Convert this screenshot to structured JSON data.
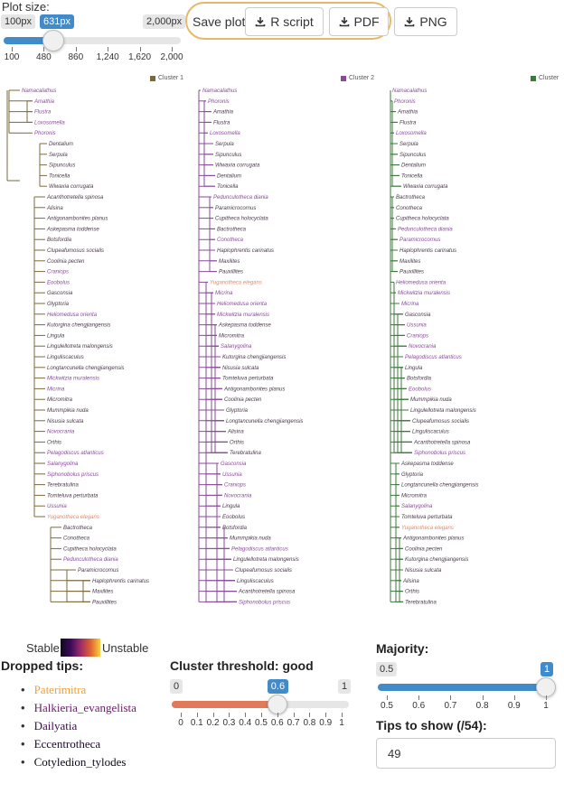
{
  "plot_size": {
    "label": "Plot size:",
    "min": "100px",
    "max": "2,000px",
    "value": "631px",
    "value_fraction": 0.2795,
    "ticks": [
      "100",
      "480",
      "860",
      "1,240",
      "1,620",
      "2,000"
    ]
  },
  "save": {
    "label": "Save plot:",
    "buttons": [
      "R script",
      "PDF",
      "PNG"
    ]
  },
  "clusters": {
    "labels": [
      "Cluster 1",
      "Cluster 2",
      "Cluster"
    ],
    "colors": [
      "#7a6a3a",
      "#8a4a9a",
      "#3a7a3a"
    ]
  },
  "trees": [
    {
      "tips": [
        {
          "t": "Namacalathus",
          "c": "#8a4a9a"
        },
        {
          "t": "Amathia",
          "c": "#8a4a9a"
        },
        {
          "t": "Flustra",
          "c": "#8a4a9a"
        },
        {
          "t": "Loxosomella",
          "c": "#8a4a9a"
        },
        {
          "t": "Phoronis",
          "c": "#8a4a9a"
        },
        {
          "t": "Dentalium",
          "c": "#4a3a4a"
        },
        {
          "t": "Serpula",
          "c": "#4a3a4a"
        },
        {
          "t": "Sipunculus",
          "c": "#4a3a4a"
        },
        {
          "t": "Tonicella",
          "c": "#4a3a4a"
        },
        {
          "t": "Wiwaxia corrugata",
          "c": "#4a3a4a"
        },
        {
          "t": "Acanthotretella spinosa",
          "c": "#4a3a4a"
        },
        {
          "t": "Alisina",
          "c": "#4a3a4a"
        },
        {
          "t": "Antigonambonites planus",
          "c": "#4a3a4a"
        },
        {
          "t": "Askepasma toddense",
          "c": "#4a3a4a"
        },
        {
          "t": "Botsfordia",
          "c": "#4a3a4a"
        },
        {
          "t": "Clupeafumosus socialis",
          "c": "#4a3a4a"
        },
        {
          "t": "Coolinia pecten",
          "c": "#4a3a4a"
        },
        {
          "t": "Craniops",
          "c": "#8a4a9a"
        },
        {
          "t": "Eoobolus",
          "c": "#8a4a9a"
        },
        {
          "t": "Gasconsia",
          "c": "#4a3a4a"
        },
        {
          "t": "Glyptoria",
          "c": "#4a3a4a"
        },
        {
          "t": "Heliomedusa orienta",
          "c": "#8a4a9a"
        },
        {
          "t": "Kutorgina chengjiangensis",
          "c": "#4a3a4a"
        },
        {
          "t": "Lingula",
          "c": "#4a3a4a"
        },
        {
          "t": "Lingulellotreta malongensis",
          "c": "#4a3a4a"
        },
        {
          "t": "Linguliscaculus",
          "c": "#4a3a4a"
        },
        {
          "t": "Longtancunella chengjiangensis",
          "c": "#4a3a4a"
        },
        {
          "t": "Mickwitzia muralensis",
          "c": "#8a4a9a"
        },
        {
          "t": "Micrina",
          "c": "#8a4a9a"
        },
        {
          "t": "Micromitra",
          "c": "#4a3a4a"
        },
        {
          "t": "Mummpikia nuda",
          "c": "#4a3a4a"
        },
        {
          "t": "Nisusia sulcata",
          "c": "#4a3a4a"
        },
        {
          "t": "Novocrania",
          "c": "#8a4a9a"
        },
        {
          "t": "Orthis",
          "c": "#4a3a4a"
        },
        {
          "t": "Pelagodiscus atlanticus",
          "c": "#8a4a9a"
        },
        {
          "t": "Salanygolina",
          "c": "#8a4a9a"
        },
        {
          "t": "Siphonobolus priscus",
          "c": "#8a4a9a"
        },
        {
          "t": "Terebratulina",
          "c": "#4a3a4a"
        },
        {
          "t": "Tomteluva perturbata",
          "c": "#4a3a4a"
        },
        {
          "t": "Ussunia",
          "c": "#8a4a9a"
        },
        {
          "t": "Yuganotheca elegans",
          "c": "#e38a6a"
        },
        {
          "t": "Bactrotheca",
          "c": "#4a3a4a"
        },
        {
          "t": "Conotheca",
          "c": "#4a3a4a"
        },
        {
          "t": "Cupitheca holocyclata",
          "c": "#4a3a4a"
        },
        {
          "t": "Pedunculotheca diania",
          "c": "#8a4a9a"
        },
        {
          "t": "Paramicrocornus",
          "c": "#4a3a4a"
        },
        {
          "t": "Haplophrentis carinatus",
          "c": "#4a3a4a"
        },
        {
          "t": "Maxilites",
          "c": "#4a3a4a"
        },
        {
          "t": "Pauxillites",
          "c": "#4a3a4a"
        }
      ]
    },
    {
      "tips": [
        {
          "t": "Namacalathus",
          "c": "#8a4a9a"
        },
        {
          "t": "Phoronis",
          "c": "#8a4a9a"
        },
        {
          "t": "Amathia",
          "c": "#4a3a4a"
        },
        {
          "t": "Flustra",
          "c": "#4a3a4a"
        },
        {
          "t": "Loxosomella",
          "c": "#8a4a9a"
        },
        {
          "t": "Serpula",
          "c": "#4a3a4a"
        },
        {
          "t": "Sipunculus",
          "c": "#4a3a4a"
        },
        {
          "t": "Wiwaxia corrugata",
          "c": "#4a3a4a"
        },
        {
          "t": "Dentalium",
          "c": "#4a3a4a"
        },
        {
          "t": "Tonicella",
          "c": "#4a3a4a"
        },
        {
          "t": "Pedunculotheca diania",
          "c": "#8a4a9a"
        },
        {
          "t": "Paramicrocornus",
          "c": "#4a3a4a"
        },
        {
          "t": "Cupitheca holocyclata",
          "c": "#4a3a4a"
        },
        {
          "t": "Bactrotheca",
          "c": "#4a3a4a"
        },
        {
          "t": "Conotheca",
          "c": "#8a4a9a"
        },
        {
          "t": "Haplophrentis carinatus",
          "c": "#4a3a4a"
        },
        {
          "t": "Maxilites",
          "c": "#4a3a4a"
        },
        {
          "t": "Pauxillites",
          "c": "#4a3a4a"
        },
        {
          "t": "Yuganotheca elegans",
          "c": "#e38a6a"
        },
        {
          "t": "Micrina",
          "c": "#8a4a9a"
        },
        {
          "t": "Heliomedusa orienta",
          "c": "#8a4a9a"
        },
        {
          "t": "Mickwitzia muralensis",
          "c": "#8a4a9a"
        },
        {
          "t": "Askepasma toddense",
          "c": "#4a3a4a"
        },
        {
          "t": "Micromitra",
          "c": "#4a3a4a"
        },
        {
          "t": "Salanygolina",
          "c": "#8a4a9a"
        },
        {
          "t": "Kutorgina chengjiangensis",
          "c": "#4a3a4a"
        },
        {
          "t": "Nisusia sulcata",
          "c": "#4a3a4a"
        },
        {
          "t": "Tomteluva perturbata",
          "c": "#4a3a4a"
        },
        {
          "t": "Antigonambonites planus",
          "c": "#4a3a4a"
        },
        {
          "t": "Coolinia pecten",
          "c": "#4a3a4a"
        },
        {
          "t": "Glyptoria",
          "c": "#4a3a4a"
        },
        {
          "t": "Longtancunella chengjiangensis",
          "c": "#4a3a4a"
        },
        {
          "t": "Alisina",
          "c": "#4a3a4a"
        },
        {
          "t": "Orthis",
          "c": "#4a3a4a"
        },
        {
          "t": "Terebratulina",
          "c": "#4a3a4a"
        },
        {
          "t": "Gasconsia",
          "c": "#8a4a9a"
        },
        {
          "t": "Ussunia",
          "c": "#8a4a9a"
        },
        {
          "t": "Craniops",
          "c": "#8a4a9a"
        },
        {
          "t": "Novocrania",
          "c": "#8a4a9a"
        },
        {
          "t": "Lingula",
          "c": "#4a3a4a"
        },
        {
          "t": "Eoobolus",
          "c": "#4a3a4a"
        },
        {
          "t": "Botsfordia",
          "c": "#4a3a4a"
        },
        {
          "t": "Mummpikia nuda",
          "c": "#4a3a4a"
        },
        {
          "t": "Pelagodiscus atlanticus",
          "c": "#8a4a9a"
        },
        {
          "t": "Lingulellotreta malongensis",
          "c": "#4a3a4a"
        },
        {
          "t": "Clupeafumosus socialis",
          "c": "#4a3a4a"
        },
        {
          "t": "Linguliscaculus",
          "c": "#4a3a4a"
        },
        {
          "t": "Acanthotretella spinosa",
          "c": "#4a3a4a"
        },
        {
          "t": "Siphonobolus priscus",
          "c": "#8a4a9a"
        }
      ]
    },
    {
      "tips": [
        {
          "t": "Namacalathus",
          "c": "#8a4a9a"
        },
        {
          "t": "Phoronis",
          "c": "#8a4a9a"
        },
        {
          "t": "Amathia",
          "c": "#4a3a4a"
        },
        {
          "t": "Flustra",
          "c": "#4a3a4a"
        },
        {
          "t": "Loxosomella",
          "c": "#8a4a9a"
        },
        {
          "t": "Serpula",
          "c": "#4a3a4a"
        },
        {
          "t": "Sipunculus",
          "c": "#4a3a4a"
        },
        {
          "t": "Dentalium",
          "c": "#4a3a4a"
        },
        {
          "t": "Tonicella",
          "c": "#4a3a4a"
        },
        {
          "t": "Wiwaxia corrugata",
          "c": "#4a3a4a"
        },
        {
          "t": "Bactrotheca",
          "c": "#4a3a4a"
        },
        {
          "t": "Conotheca",
          "c": "#4a3a4a"
        },
        {
          "t": "Cupitheca holocyclata",
          "c": "#4a3a4a"
        },
        {
          "t": "Pedunculotheca diania",
          "c": "#8a4a9a"
        },
        {
          "t": "Paramicrocornus",
          "c": "#8a4a9a"
        },
        {
          "t": "Haplophrentis carinatus",
          "c": "#4a3a4a"
        },
        {
          "t": "Maxilites",
          "c": "#4a3a4a"
        },
        {
          "t": "Pauxillites",
          "c": "#4a3a4a"
        },
        {
          "t": "Heliomedusa orienta",
          "c": "#8a4a9a"
        },
        {
          "t": "Mickwitzia muralensis",
          "c": "#8a4a9a"
        },
        {
          "t": "Micrina",
          "c": "#8a4a9a"
        },
        {
          "t": "Gasconsia",
          "c": "#4a3a4a"
        },
        {
          "t": "Ussunia",
          "c": "#8a4a9a"
        },
        {
          "t": "Craniops",
          "c": "#8a4a9a"
        },
        {
          "t": "Novocrania",
          "c": "#8a4a9a"
        },
        {
          "t": "Pelagodiscus atlanticus",
          "c": "#8a4a9a"
        },
        {
          "t": "Lingula",
          "c": "#4a3a4a"
        },
        {
          "t": "Botsfordia",
          "c": "#4a3a4a"
        },
        {
          "t": "Eoobolus",
          "c": "#8a4a9a"
        },
        {
          "t": "Mummpikia nuda",
          "c": "#4a3a4a"
        },
        {
          "t": "Lingulellotreta malongensis",
          "c": "#4a3a4a"
        },
        {
          "t": "Clupeafumosus socialis",
          "c": "#4a3a4a"
        },
        {
          "t": "Linguliscaculus",
          "c": "#4a3a4a"
        },
        {
          "t": "Acanthotretella spinosa",
          "c": "#4a3a4a"
        },
        {
          "t": "Siphonobolus priscus",
          "c": "#8a4a9a"
        },
        {
          "t": "Askepasma toddense",
          "c": "#4a3a4a"
        },
        {
          "t": "Glyptoria",
          "c": "#4a3a4a"
        },
        {
          "t": "Longtancunella chengjiangensis",
          "c": "#4a3a4a"
        },
        {
          "t": "Micromitra",
          "c": "#4a3a4a"
        },
        {
          "t": "Salanygolina",
          "c": "#8a4a9a"
        },
        {
          "t": "Tomteluva perturbata",
          "c": "#4a3a4a"
        },
        {
          "t": "Yuganotheca elegans",
          "c": "#e38a6a"
        },
        {
          "t": "Antigonambonites planus",
          "c": "#4a3a4a"
        },
        {
          "t": "Coolinia pecten",
          "c": "#4a3a4a"
        },
        {
          "t": "Kutorgina chengjiangensis",
          "c": "#4a3a4a"
        },
        {
          "t": "Nisusia sulcata",
          "c": "#4a3a4a"
        },
        {
          "t": "Alisina",
          "c": "#4a3a4a"
        },
        {
          "t": "Orthis",
          "c": "#4a3a4a"
        },
        {
          "t": "Terebratulina",
          "c": "#4a3a4a"
        }
      ]
    }
  ],
  "stability": {
    "stable": "Stable",
    "unstable": "Unstable"
  },
  "dropped": {
    "title": "Dropped tips:",
    "items": [
      {
        "name": "Paterimitra",
        "color": "#f0a030"
      },
      {
        "name": "Halkieria_evangelista",
        "color": "#6a1a6a"
      },
      {
        "name": "Dailyatia",
        "color": "#3a0a4a"
      },
      {
        "name": "Eccentrotheca",
        "color": "#1a0a2a"
      },
      {
        "name": "Cotyledion_tylodes",
        "color": "#0a0a1a"
      }
    ]
  },
  "cluster_threshold": {
    "label": "Cluster threshold: good",
    "min": "0",
    "max": "1",
    "value": "0.6",
    "value_fraction": 0.6,
    "ticks": [
      "0",
      "0.1",
      "0.2",
      "0.3",
      "0.4",
      "0.5",
      "0.6",
      "0.7",
      "0.8",
      "0.9",
      "1"
    ]
  },
  "majority": {
    "label": "Majority:",
    "min": "0.5",
    "value": "1",
    "value_fraction": 1.0,
    "ticks": [
      "0.5",
      "0.6",
      "0.7",
      "0.8",
      "0.9",
      "1"
    ]
  },
  "tips_to_show": {
    "label": "Tips to show (/54):",
    "value": "49"
  }
}
